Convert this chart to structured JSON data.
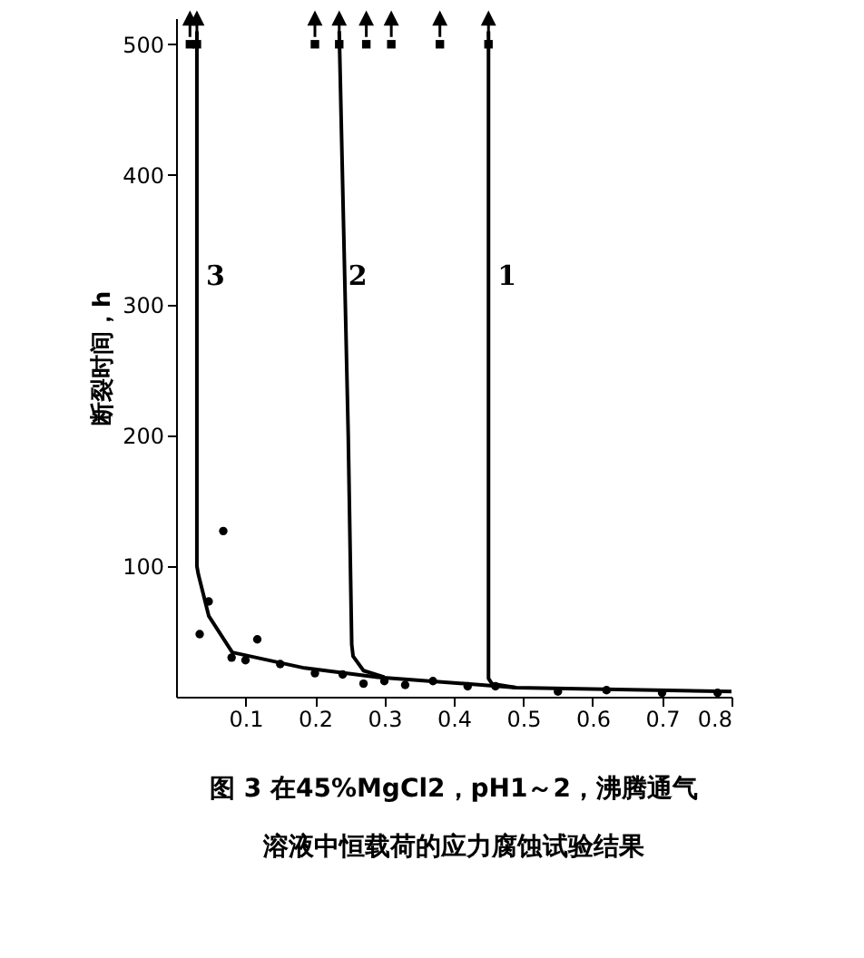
{
  "chart_data": {
    "type": "line",
    "title": "图 3 在45%MgCl2，pH1～2，沸腾通气",
    "subtitle": "溶液中恒载荷的应力腐蚀试验结果",
    "ylabel": "断裂时间，h",
    "xlim": [
      0,
      0.8
    ],
    "ylim": [
      0,
      520
    ],
    "xticks": [
      0.1,
      0.2,
      0.3,
      0.4,
      0.5,
      0.6,
      0.7,
      0.8
    ],
    "yticks": [
      100,
      200,
      300,
      400,
      500
    ],
    "grid": false,
    "series": [
      {
        "name": "3",
        "color": "#000000",
        "x": [
          0.03,
          0.03,
          0.032,
          0.047,
          0.081,
          0.185,
          0.29,
          0.49,
          0.8
        ],
        "values": [
          510,
          100,
          94,
          62,
          34,
          22,
          15,
          7,
          4
        ]
      },
      {
        "name": "2",
        "color": "#000000",
        "x": [
          0.235,
          0.248,
          0.253,
          0.255,
          0.27,
          0.3
        ],
        "values": [
          510,
          200,
          40,
          31,
          20,
          15
        ]
      },
      {
        "name": "1",
        "color": "#000000",
        "x": [
          0.45,
          0.45,
          0.455,
          0.49
        ],
        "values": [
          510,
          14,
          10,
          7
        ]
      },
      {
        "type": "scatter",
        "color": "#000000",
        "marker": "circle",
        "x": [
          0.068,
          0.047,
          0.034,
          0.117,
          0.08,
          0.1,
          0.15,
          0.2,
          0.24,
          0.27,
          0.3,
          0.33,
          0.37,
          0.42,
          0.46,
          0.55,
          0.62,
          0.7,
          0.78
        ],
        "values": [
          127,
          73,
          48,
          44,
          30,
          28,
          25,
          18,
          17,
          10,
          12,
          9,
          12,
          8,
          8,
          4,
          5,
          3,
          3
        ]
      },
      {
        "type": "scatter",
        "color": "#000000",
        "marker": "square",
        "x": [
          0.02,
          0.03,
          0.2,
          0.235,
          0.274,
          0.31,
          0.38,
          0.45
        ],
        "values": [
          500,
          500,
          500,
          500,
          500,
          500,
          500,
          500
        ]
      }
    ]
  }
}
